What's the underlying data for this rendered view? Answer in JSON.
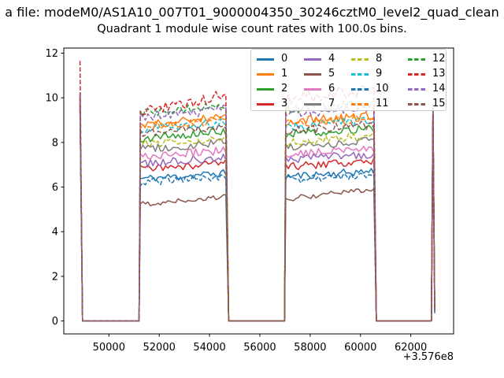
{
  "figure": {
    "suptitle_visible": "a file: modeM0/AS1A10_007T01_9000004350_30246cztM0_level2_quad_clean",
    "title": "Quadrant 1 module wise count rates with 100.0s bins."
  },
  "chart_data": {
    "type": "line",
    "title": "Quadrant 1 module wise count rates with 100.0s bins.",
    "suptitle_visible": "a file: modeM0/AS1A10_007T01_9000004350_30246cztM0_level2_quad_clean",
    "xlabel": "",
    "ylabel": "",
    "x_offset_text": "+3.576e8",
    "x_units_note": "x values are seconds, displayed relative to +3.576e8",
    "bin_seconds": 100,
    "xlim": [
      48230,
      63700
    ],
    "ylim": [
      -0.58,
      12.23
    ],
    "xticks": [
      50000,
      52000,
      54000,
      56000,
      58000,
      60000,
      62000
    ],
    "yticks": [
      0,
      2,
      4,
      6,
      8,
      10,
      12
    ],
    "grid": false,
    "legend": {
      "position": "upper right inside axes",
      "columns": 4,
      "column_major": true,
      "labels": [
        "0",
        "1",
        "2",
        "3",
        "4",
        "5",
        "6",
        "7",
        "8",
        "9",
        "10",
        "11",
        "12",
        "13",
        "14",
        "15"
      ]
    },
    "structure": {
      "start_spike": {
        "x": 48850,
        "fall_x": 48950
      },
      "zero_intervals": [
        [
          48950,
          51200
        ],
        [
          54760,
          56980
        ],
        [
          60630,
          62820
        ]
      ],
      "on_intervals": [
        [
          51250,
          54700
        ],
        [
          57030,
          60570
        ]
      ],
      "end_spike": {
        "x": 62880,
        "end_x": 62950
      }
    },
    "series": [
      {
        "label": "0",
        "color": "#1f77b4",
        "dash": "solid",
        "level_block1": 6.5,
        "level_block2": 6.6,
        "ramp_block1": 0.25,
        "ramp_block2": 0.25,
        "noise": 0.17,
        "start_spike_top": 9.6,
        "end_spike_top": 9.3,
        "end_value": 0.45
      },
      {
        "label": "1",
        "color": "#ff7f0e",
        "dash": "solid",
        "level_block1": 8.95,
        "level_block2": 9.05,
        "ramp_block1": 0.3,
        "ramp_block2": 0.25,
        "noise": 0.2,
        "start_spike_top": 10.15,
        "end_spike_top": 9.45,
        "end_value": 0.55
      },
      {
        "label": "2",
        "color": "#2ca02c",
        "dash": "solid",
        "level_block1": 8.35,
        "level_block2": 8.5,
        "ramp_block1": 0.3,
        "ramp_block2": 0.3,
        "noise": 0.2,
        "start_spike_top": 10.0,
        "end_spike_top": 9.5,
        "end_value": 0.6
      },
      {
        "label": "3",
        "color": "#d62728",
        "dash": "solid",
        "level_block1": 6.95,
        "level_block2": 7.05,
        "ramp_block1": 0.25,
        "ramp_block2": 0.25,
        "noise": 0.18,
        "start_spike_top": 9.7,
        "end_spike_top": 9.3,
        "end_value": 0.5
      },
      {
        "label": "4",
        "color": "#9467bd",
        "dash": "solid",
        "level_block1": 7.2,
        "level_block2": 7.35,
        "ramp_block1": 0.3,
        "ramp_block2": 0.25,
        "noise": 0.18,
        "start_spike_top": 9.8,
        "end_spike_top": 9.35,
        "end_value": 0.5
      },
      {
        "label": "5",
        "color": "#8c564b",
        "dash": "solid",
        "level_block1": 5.4,
        "level_block2": 5.7,
        "ramp_block1": 0.3,
        "ramp_block2": 0.45,
        "noise": 0.13,
        "start_spike_top": 9.5,
        "end_spike_top": 9.2,
        "end_value": 0.4
      },
      {
        "label": "6",
        "color": "#e377c2",
        "dash": "solid",
        "level_block1": 7.5,
        "level_block2": 7.62,
        "ramp_block1": 0.3,
        "ramp_block2": 0.25,
        "noise": 0.18,
        "start_spike_top": 9.85,
        "end_spike_top": 9.4,
        "end_value": 0.55
      },
      {
        "label": "7",
        "color": "#7f7f7f",
        "dash": "solid",
        "level_block1": 7.85,
        "level_block2": 7.95,
        "ramp_block1": 0.3,
        "ramp_block2": 0.25,
        "noise": 0.18,
        "start_spike_top": 9.95,
        "end_spike_top": 9.4,
        "end_value": 0.5
      },
      {
        "label": "8",
        "color": "#bcbd22",
        "dash": "dashed",
        "level_block1": 8.05,
        "level_block2": 8.15,
        "ramp_block1": 0.3,
        "ramp_block2": 0.3,
        "noise": 0.2,
        "start_spike_top": 10.05,
        "end_spike_top": 9.45,
        "end_value": 0.55
      },
      {
        "label": "9",
        "color": "#17becf",
        "dash": "dashed",
        "level_block1": 8.75,
        "level_block2": 8.85,
        "ramp_block1": 0.3,
        "ramp_block2": 0.3,
        "noise": 0.2,
        "start_spike_top": 10.2,
        "end_spike_top": 9.5,
        "end_value": 0.6
      },
      {
        "label": "10",
        "color": "#1f77b4",
        "dash": "dashed",
        "level_block1": 6.35,
        "level_block2": 6.45,
        "ramp_block1": 0.25,
        "ramp_block2": 0.25,
        "noise": 0.18,
        "start_spike_top": 9.55,
        "end_spike_top": 9.25,
        "end_value": 0.35
      },
      {
        "label": "11",
        "color": "#ff7f0e",
        "dash": "dashed",
        "level_block1": 8.85,
        "level_block2": 8.95,
        "ramp_block1": 0.3,
        "ramp_block2": 0.3,
        "noise": 0.2,
        "start_spike_top": 10.1,
        "end_spike_top": 9.5,
        "end_value": 0.55
      },
      {
        "label": "12",
        "color": "#2ca02c",
        "dash": "dashed",
        "level_block1": 9.45,
        "level_block2": 9.6,
        "ramp_block1": 0.35,
        "ramp_block2": 0.3,
        "noise": 0.22,
        "start_spike_top": 10.25,
        "end_spike_top": 9.6,
        "end_value": 0.65
      },
      {
        "label": "13",
        "color": "#d62728",
        "dash": "dashed",
        "level_block1": 9.75,
        "level_block2": 10.15,
        "ramp_block1": 0.85,
        "ramp_block2": 0.5,
        "noise": 0.25,
        "start_spike_top": 11.65,
        "end_spike_top": 9.7,
        "end_value": 0.6
      },
      {
        "label": "14",
        "color": "#9467bd",
        "dash": "dashed",
        "level_block1": 9.3,
        "level_block2": 9.45,
        "ramp_block1": 0.35,
        "ramp_block2": 0.3,
        "noise": 0.22,
        "start_spike_top": 10.2,
        "end_spike_top": 9.55,
        "end_value": 0.6
      },
      {
        "label": "15",
        "color": "#8c564b",
        "dash": "dashed",
        "level_block1": 8.55,
        "level_block2": 8.65,
        "ramp_block1": 0.3,
        "ramp_block2": 0.3,
        "noise": 0.2,
        "start_spike_top": 10.05,
        "end_spike_top": 9.45,
        "end_value": 0.5
      }
    ]
  }
}
